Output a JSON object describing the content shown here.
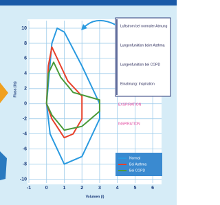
{
  "chart_data": {
    "type": "line",
    "x_label": "Volumen (l)",
    "y_label": "Fluss (l/s)",
    "xlim": [
      -1,
      6.5
    ],
    "ylim": [
      -10.5,
      11
    ],
    "xticks": [
      -1,
      0,
      1,
      2,
      3,
      4,
      5,
      6
    ],
    "yticks": [
      -10,
      -8,
      -6,
      -4,
      -2,
      0,
      2,
      4,
      6,
      8,
      10
    ],
    "grid": true,
    "annotations": [
      "Luftstrom bei normaler Atmung",
      "Lungenfunktion beim Asthma",
      "Lungenfunktion bei COPD",
      "Einatmung: Inspiration",
      "EXSPIRATION",
      "INSPIRATION"
    ],
    "series": [
      {
        "name": "Normal",
        "color": "#2a9ae0",
        "x": [
          0,
          0.3,
          0.6,
          1.0,
          2.0,
          3.0,
          3.0,
          2.0,
          1.0,
          0.2,
          0
        ],
        "y": [
          0,
          8,
          10,
          9.5,
          5,
          0,
          -2,
          -7,
          -8,
          -4,
          0
        ]
      },
      {
        "name": "Bei Asthma",
        "color": "#e8402a",
        "x": [
          0,
          0.1,
          0.3,
          0.6,
          1.2,
          2.0,
          2.0,
          1.5,
          1.0,
          0.3,
          0
        ],
        "y": [
          0,
          5,
          7.5,
          6,
          3,
          1,
          -2,
          -4,
          -4.5,
          -2,
          0
        ]
      },
      {
        "name": "Bei COPD",
        "color": "#4a9a3a",
        "x": [
          0,
          0.1,
          0.4,
          0.8,
          1.5,
          3.0,
          3.0,
          2.0,
          1.0,
          0.3,
          0
        ],
        "y": [
          0,
          4,
          5.5,
          3.5,
          1.5,
          0.5,
          -1,
          -3,
          -3.5,
          -1.5,
          0
        ]
      }
    ]
  }
}
